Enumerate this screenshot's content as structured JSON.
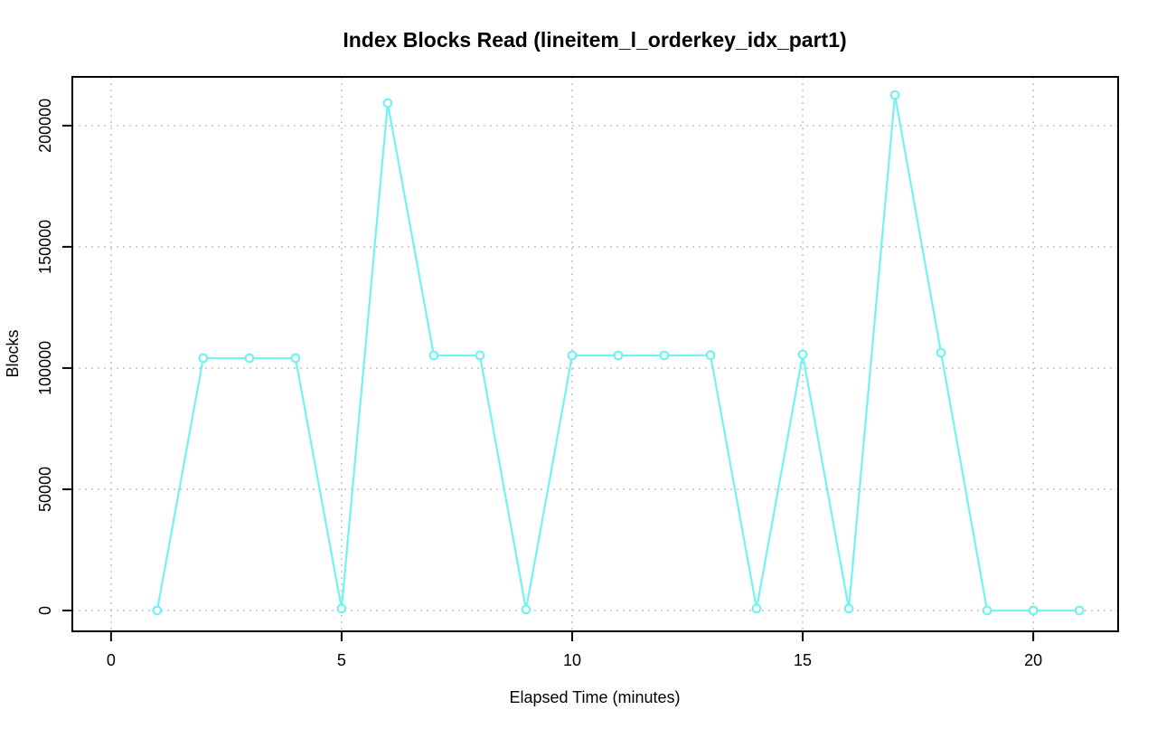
{
  "chart_data": {
    "type": "line",
    "title": "Index Blocks Read (lineitem_l_orderkey_idx_part1)",
    "xlabel": "Elapsed Time (minutes)",
    "ylabel": "Blocks",
    "x": [
      1,
      2,
      3,
      4,
      5,
      6,
      7,
      8,
      9,
      10,
      11,
      12,
      13,
      14,
      15,
      16,
      17,
      18,
      19,
      20,
      21
    ],
    "values": [
      0,
      104100,
      104100,
      104100,
      800,
      209300,
      105200,
      105200,
      400,
      105200,
      105200,
      105200,
      105300,
      800,
      105600,
      800,
      212600,
      106300,
      0,
      0,
      0
    ],
    "x_ticks": [
      0,
      5,
      10,
      15,
      20
    ],
    "x_tick_labels": [
      "0",
      "5",
      "10",
      "15",
      "20"
    ],
    "y_ticks": [
      0,
      50000,
      100000,
      150000,
      200000
    ],
    "y_tick_labels": [
      "0",
      "50000",
      "100000",
      "150000",
      "200000"
    ],
    "x_range": [
      -0.84,
      21.84
    ],
    "y_range": [
      -8600,
      220100
    ],
    "grid": true,
    "grid_style": "dotted",
    "legend": "none",
    "marker": "open-circle",
    "line_color": "#72f2f2",
    "grid_color": "#c6c6c6",
    "axis_color": "#000000"
  }
}
